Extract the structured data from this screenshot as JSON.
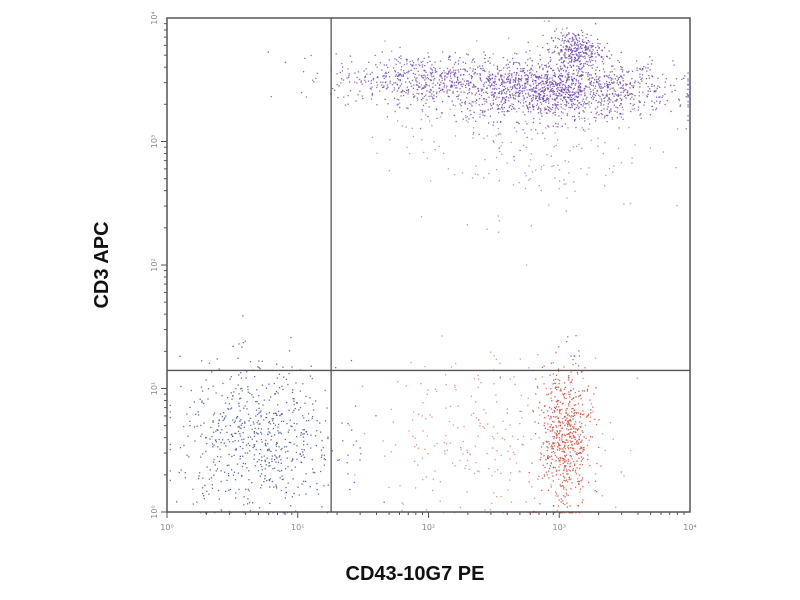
{
  "chart_data": {
    "type": "scatter",
    "title": "",
    "xlabel": "CD43-10G7 PE",
    "ylabel": "CD3 APC",
    "x_scale": "log",
    "y_scale": "log",
    "xlim": [
      1,
      10000
    ],
    "ylim": [
      1,
      10000
    ],
    "x_ticks": [
      1,
      10,
      100,
      1000,
      10000
    ],
    "y_ticks": [
      1,
      10,
      100,
      1000,
      10000
    ],
    "x_tick_labels": [
      "10⁰",
      "10¹",
      "10²",
      "10³",
      "10⁴"
    ],
    "y_tick_labels": [
      "10⁰",
      "10¹",
      "10²",
      "10³",
      "10⁴"
    ],
    "grid": false,
    "legend": "none",
    "quadrant_gates": {
      "x": 18,
      "y": 14
    },
    "populations": [
      {
        "color": "#6a3fb0",
        "center": [
          900,
          2600
        ],
        "spread_decades": [
          0.45,
          0.12
        ],
        "count": 1400
      },
      {
        "color": "#7248b8",
        "center": [
          90,
          3300
        ],
        "spread_decades": [
          0.35,
          0.1
        ],
        "count": 500
      },
      {
        "color": "#6a3fb0",
        "center": [
          1300,
          5500
        ],
        "spread_decades": [
          0.1,
          0.08
        ],
        "count": 300
      },
      {
        "color": "#9a80cc",
        "center": [
          500,
          1200
        ],
        "spread_decades": [
          0.5,
          0.35
        ],
        "count": 250
      },
      {
        "color": "#3b4aa0",
        "center": [
          5,
          4
        ],
        "spread_decades": [
          0.3,
          0.3
        ],
        "count": 650
      },
      {
        "color": "#d2402e",
        "center": [
          1100,
          4
        ],
        "spread_decades": [
          0.1,
          0.3
        ],
        "count": 600
      },
      {
        "color": "#e07a6a",
        "center": [
          300,
          4
        ],
        "spread_decades": [
          0.45,
          0.35
        ],
        "count": 250
      }
    ],
    "colors": {
      "axis": "#555555",
      "gate": "#555555"
    }
  }
}
